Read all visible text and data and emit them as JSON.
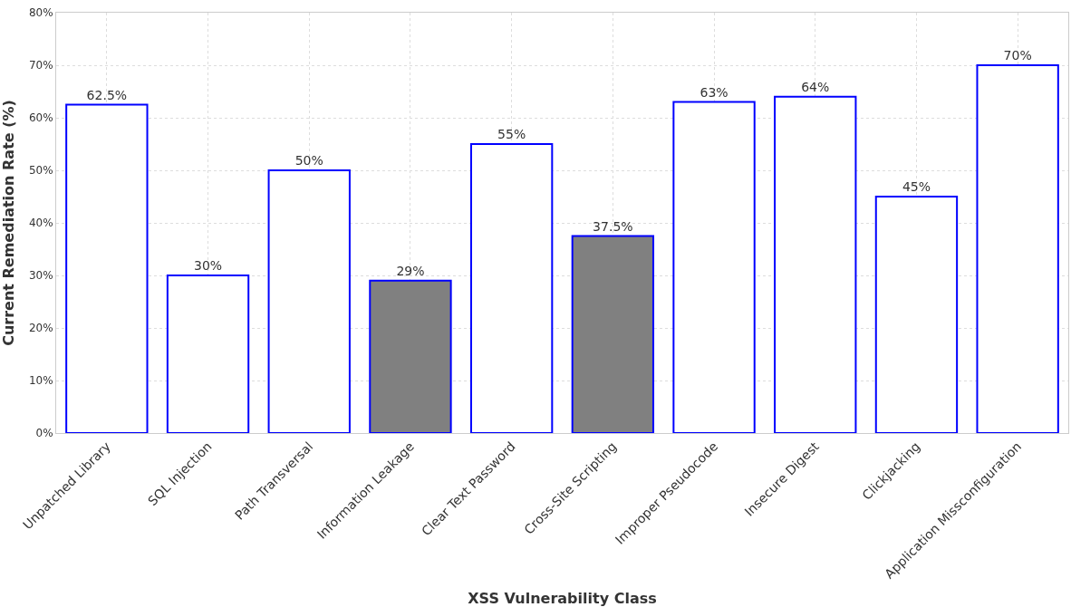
{
  "chart_data": {
    "type": "bar",
    "xlabel": "XSS Vulnerability Class",
    "ylabel": "Current Remediation Rate (%)",
    "categories": [
      "Unpatched Library",
      "SQL Injection",
      "Path Transversal",
      "Information Leakage",
      "Clear Text Password",
      "Cross-Site Scripting",
      "Improper Pseudocode",
      "Insecure Digest",
      "Clickjacking",
      "Application Missconfiguration"
    ],
    "values": [
      62.5,
      30,
      50,
      29,
      55,
      37.5,
      63,
      64,
      45,
      70
    ],
    "value_labels": [
      "62.5%",
      "30%",
      "50%",
      "29%",
      "55%",
      "37.5%",
      "63%",
      "64%",
      "45%",
      "70%"
    ],
    "colors": [
      "#ffffff",
      "#ffffff",
      "#ffffff",
      "#808080",
      "#ffffff",
      "#808080",
      "#ffffff",
      "#ffffff",
      "#ffffff",
      "#ffffff"
    ],
    "ylim": [
      0,
      80
    ],
    "yticks": [
      {
        "value": 0,
        "label": "0%"
      },
      {
        "value": 10,
        "label": "10%"
      },
      {
        "value": 20,
        "label": "20%"
      },
      {
        "value": 30,
        "label": "30%"
      },
      {
        "value": 40,
        "label": "40%"
      },
      {
        "value": 50,
        "label": "50%"
      },
      {
        "value": 60,
        "label": "60%"
      },
      {
        "value": 70,
        "label": "70%"
      },
      {
        "value": 80,
        "label": "80%"
      }
    ],
    "grid": true
  }
}
